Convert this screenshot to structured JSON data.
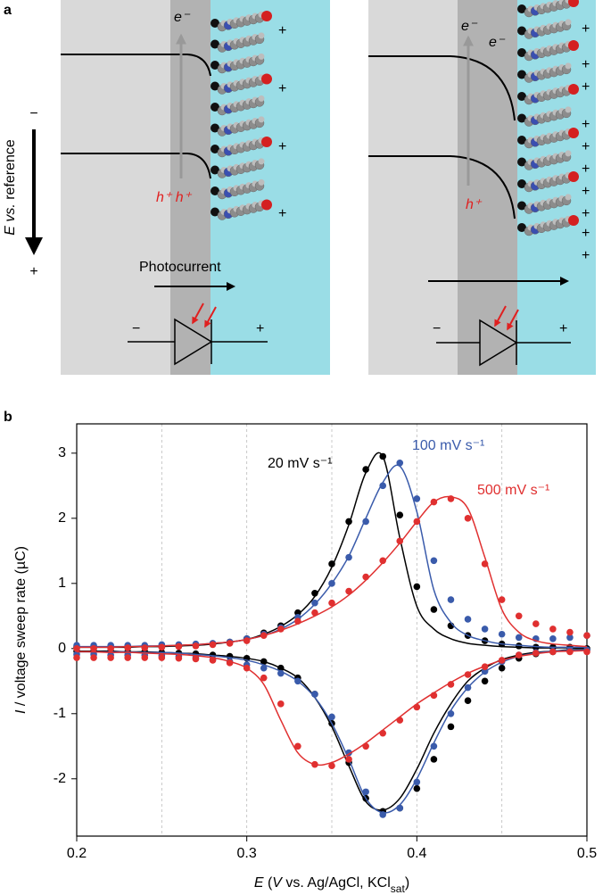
{
  "panel_a": {
    "label": "a",
    "left": {
      "e": "e⁻",
      "h": "h⁺ h⁺",
      "photocurrent": "Photocurrent",
      "charges": [
        "+",
        "+",
        "+",
        "+"
      ],
      "diode_minus": "−",
      "diode_plus": "+"
    },
    "right": {
      "e1": "e⁻",
      "e2": "e⁻",
      "h": "h⁺",
      "charges": [
        "+",
        "+",
        "+",
        "+",
        "+",
        "+",
        "+",
        "+",
        "+",
        "+"
      ],
      "diode_minus": "−",
      "diode_plus": "+"
    },
    "axis": {
      "label": [
        "E",
        " vs.",
        " reference"
      ],
      "minus": "−",
      "plus": "+"
    }
  },
  "chart_data": {
    "type": "cv",
    "panel_label": "b",
    "xlabel": [
      "E",
      " (",
      "V",
      " vs. Ag/AgCl, KCl",
      "sat",
      ")"
    ],
    "ylabel": [
      "I",
      " / voltage sweep rate (µC)"
    ],
    "xlim": [
      0.2,
      0.5
    ],
    "ylim": [
      -2.88,
      3.45
    ],
    "xticks": [
      0.2,
      0.3,
      0.4,
      0.5
    ],
    "yticks": [
      -2,
      -1,
      0,
      1,
      2,
      3
    ],
    "xgrid": [
      0.25,
      0.3,
      0.35,
      0.4,
      0.45
    ],
    "x": [
      0.2,
      0.21,
      0.22,
      0.23,
      0.24,
      0.25,
      0.26,
      0.27,
      0.28,
      0.29,
      0.3,
      0.31,
      0.32,
      0.33,
      0.34,
      0.35,
      0.36,
      0.37,
      0.38,
      0.39,
      0.4,
      0.41,
      0.42,
      0.43,
      0.44,
      0.45,
      0.46,
      0.47,
      0.48,
      0.49,
      0.5
    ],
    "series": [
      {
        "name": "20 mV s⁻¹",
        "color": "#000000",
        "values": [
          0.02,
          0.02,
          0.02,
          0.02,
          0.03,
          0.03,
          0.04,
          0.05,
          0.07,
          0.1,
          0.15,
          0.24,
          0.35,
          0.55,
          0.85,
          1.3,
          1.95,
          2.75,
          2.95,
          2.05,
          0.95,
          0.6,
          0.35,
          0.2,
          0.12,
          0.07,
          0.04,
          0.02,
          0.02,
          0.02,
          0.0
        ],
        "return_values": [
          -0.04,
          -0.04,
          -0.04,
          -0.05,
          -0.05,
          -0.06,
          -0.07,
          -0.08,
          -0.1,
          -0.12,
          -0.15,
          -0.2,
          -0.3,
          -0.45,
          -0.7,
          -1.15,
          -1.75,
          -2.3,
          -2.5,
          -2.45,
          -2.15,
          -1.7,
          -1.2,
          -0.8,
          -0.5,
          -0.3,
          -0.15,
          -0.08,
          -0.05,
          -0.02,
          -0.02
        ],
        "fit_values": [
          0.02,
          0.02,
          0.02,
          0.02,
          0.03,
          0.03,
          0.04,
          0.05,
          0.07,
          0.1,
          0.14,
          0.22,
          0.34,
          0.52,
          0.8,
          1.25,
          1.9,
          2.7,
          2.95,
          1.7,
          0.65,
          0.3,
          0.15,
          0.08,
          0.05,
          0.03,
          0.02,
          0.01,
          0.01,
          0.01,
          0
        ],
        "fit_return_values": [
          -0.04,
          -0.04,
          -0.04,
          -0.05,
          -0.05,
          -0.06,
          -0.07,
          -0.08,
          -0.1,
          -0.12,
          -0.15,
          -0.2,
          -0.3,
          -0.45,
          -0.75,
          -1.2,
          -1.8,
          -2.35,
          -2.48,
          -2.3,
          -1.85,
          -1.3,
          -0.85,
          -0.5,
          -0.3,
          -0.17,
          -0.1,
          -0.06,
          -0.04,
          -0.02,
          -0.02
        ]
      },
      {
        "name": "100 mV s⁻¹",
        "color": "#3a5bab",
        "values": [
          0.05,
          0.05,
          0.05,
          0.05,
          0.05,
          0.06,
          0.06,
          0.07,
          0.08,
          0.1,
          0.15,
          0.22,
          0.32,
          0.48,
          0.7,
          1.0,
          1.4,
          1.95,
          2.5,
          2.85,
          2.3,
          1.35,
          0.75,
          0.45,
          0.3,
          0.22,
          0.17,
          0.15,
          0.15,
          0.17,
          0.2
        ],
        "return_values": [
          -0.09,
          -0.09,
          -0.1,
          -0.1,
          -0.1,
          -0.11,
          -0.12,
          -0.14,
          -0.17,
          -0.2,
          -0.25,
          -0.3,
          -0.38,
          -0.5,
          -0.7,
          -1.05,
          -1.6,
          -2.2,
          -2.55,
          -2.45,
          -2.05,
          -1.5,
          -1.0,
          -0.6,
          -0.35,
          -0.2,
          -0.1,
          -0.06,
          -0.04,
          -0.02,
          -0.02
        ],
        "fit_values": [
          0.03,
          0.03,
          0.03,
          0.03,
          0.04,
          0.04,
          0.05,
          0.06,
          0.08,
          0.1,
          0.14,
          0.2,
          0.3,
          0.45,
          0.68,
          1.0,
          1.42,
          2.0,
          2.55,
          2.8,
          2.1,
          0.9,
          0.4,
          0.2,
          0.12,
          0.07,
          0.05,
          0.03,
          0.02,
          0.02,
          0.02
        ],
        "fit_return_values": [
          -0.05,
          -0.05,
          -0.05,
          -0.05,
          -0.06,
          -0.06,
          -0.07,
          -0.09,
          -0.11,
          -0.14,
          -0.18,
          -0.25,
          -0.35,
          -0.5,
          -0.75,
          -1.15,
          -1.7,
          -2.3,
          -2.52,
          -2.4,
          -2.0,
          -1.45,
          -0.95,
          -0.6,
          -0.36,
          -0.21,
          -0.12,
          -0.07,
          -0.04,
          -0.03,
          -0.02
        ]
      },
      {
        "name": "500 mV s⁻¹",
        "color": "#e03030",
        "values": [
          0.0,
          0.0,
          0.0,
          0.01,
          0.01,
          0.02,
          0.03,
          0.04,
          0.06,
          0.08,
          0.12,
          0.2,
          0.3,
          0.42,
          0.55,
          0.7,
          0.88,
          1.1,
          1.35,
          1.65,
          1.95,
          2.25,
          2.3,
          2.0,
          1.3,
          0.75,
          0.5,
          0.38,
          0.3,
          0.25,
          0.2
        ],
        "return_values": [
          -0.14,
          -0.14,
          -0.14,
          -0.14,
          -0.14,
          -0.14,
          -0.15,
          -0.16,
          -0.18,
          -0.22,
          -0.3,
          -0.45,
          -0.85,
          -1.5,
          -1.78,
          -1.8,
          -1.7,
          -1.5,
          -1.3,
          -1.1,
          -0.9,
          -0.72,
          -0.55,
          -0.4,
          -0.28,
          -0.18,
          -0.1,
          -0.07,
          -0.05,
          -0.05,
          -0.05
        ],
        "fit_values": [
          0.02,
          0.02,
          0.02,
          0.03,
          0.03,
          0.04,
          0.05,
          0.06,
          0.08,
          0.1,
          0.14,
          0.2,
          0.28,
          0.38,
          0.5,
          0.64,
          0.82,
          1.05,
          1.32,
          1.62,
          1.95,
          2.25,
          2.33,
          2.15,
          1.4,
          0.6,
          0.25,
          0.12,
          0.07,
          0.05,
          0.03
        ],
        "fit_return_values": [
          -0.05,
          -0.05,
          -0.06,
          -0.06,
          -0.07,
          -0.08,
          -0.09,
          -0.11,
          -0.14,
          -0.2,
          -0.3,
          -0.55,
          -1.1,
          -1.6,
          -1.78,
          -1.75,
          -1.62,
          -1.45,
          -1.25,
          -1.05,
          -0.85,
          -0.68,
          -0.52,
          -0.38,
          -0.27,
          -0.18,
          -0.12,
          -0.08,
          -0.05,
          -0.04,
          -0.03
        ]
      }
    ]
  }
}
